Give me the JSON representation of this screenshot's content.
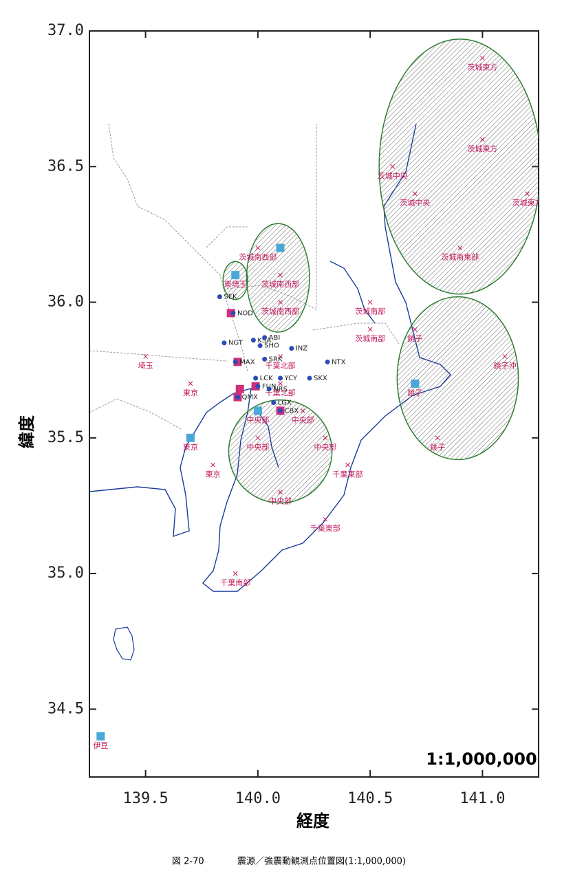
{
  "chart_data": {
    "type": "map",
    "xlabel": "経度",
    "ylabel": "緯度",
    "xlim": [
      139.25,
      141.25
    ],
    "ylim": [
      34.25,
      37.0
    ],
    "xticks": [
      139.5,
      {
        "value": 140,
        "label": "140.0"
      },
      140.5,
      {
        "value": 141,
        "label": "141.0"
      }
    ],
    "yticks": [
      {
        "value": 34.5,
        "label": "34.5"
      },
      {
        "value": 35,
        "label": "35.0"
      },
      {
        "value": 35.5,
        "label": "35.5"
      },
      {
        "value": 36,
        "label": "36.0"
      },
      {
        "value": 36.5,
        "label": "36.5"
      },
      {
        "value": 37,
        "label": "37.0"
      }
    ],
    "scale_label": "1:1,000,000",
    "epicenter_color": "#c2185b",
    "station_color": "#2b4bb8",
    "ellipse_color": "#2e7d32",
    "epicenters": [
      {
        "label": "茨城東方",
        "lon": 141.0,
        "lat": 36.9
      },
      {
        "label": "茨城東方",
        "lon": 141.0,
        "lat": 36.6
      },
      {
        "label": "茨城中央",
        "lon": 140.6,
        "lat": 36.5
      },
      {
        "label": "茨城中央",
        "lon": 140.7,
        "lat": 36.4
      },
      {
        "label": "茨城東方",
        "lon": 141.2,
        "lat": 36.4
      },
      {
        "label": "茨城南東部",
        "lon": 140.9,
        "lat": 36.2
      },
      {
        "label": "茨城南西部",
        "lon": 140.0,
        "lat": 36.2
      },
      {
        "label": "茨城南西部",
        "lon": 140.1,
        "lat": 36.1
      },
      {
        "label": "茨城南西部",
        "lon": 140.1,
        "lat": 36.0
      },
      {
        "label": "東埼玉",
        "lon": 139.9,
        "lat": 36.1
      },
      {
        "label": "茨城南部",
        "lon": 140.5,
        "lat": 36.0
      },
      {
        "label": "茨城南部",
        "lon": 140.5,
        "lat": 35.9
      },
      {
        "label": "銚子",
        "lon": 140.7,
        "lat": 35.9
      },
      {
        "label": "銚子沖",
        "lon": 141.1,
        "lat": 35.8
      },
      {
        "label": "銚子",
        "lon": 140.7,
        "lat": 35.7
      },
      {
        "label": "銚子",
        "lon": 140.8,
        "lat": 35.5
      },
      {
        "label": "埼玉",
        "lon": 139.5,
        "lat": 35.8
      },
      {
        "label": "東京",
        "lon": 139.7,
        "lat": 35.7
      },
      {
        "label": "東京",
        "lon": 139.7,
        "lat": 35.5
      },
      {
        "label": "東京",
        "lon": 139.8,
        "lat": 35.4
      },
      {
        "label": "千葉北部",
        "lon": 140.1,
        "lat": 35.8
      },
      {
        "label": "千葉北部",
        "lon": 140.1,
        "lat": 35.7
      },
      {
        "label": "中央部",
        "lon": 140.0,
        "lat": 35.6
      },
      {
        "label": "中央部",
        "lon": 140.2,
        "lat": 35.6
      },
      {
        "label": "中央部",
        "lon": 140.0,
        "lat": 35.5
      },
      {
        "label": "中央部",
        "lon": 140.3,
        "lat": 35.5
      },
      {
        "label": "中央部",
        "lon": 140.1,
        "lat": 35.3
      },
      {
        "label": "千葉東部",
        "lon": 140.4,
        "lat": 35.4
      },
      {
        "label": "千葉東部",
        "lon": 140.3,
        "lat": 35.2
      },
      {
        "label": "千葉南部",
        "lon": 139.9,
        "lat": 35.0
      },
      {
        "label": "伊豆",
        "lon": 139.3,
        "lat": 34.4
      }
    ],
    "stations": [
      {
        "code": "SEK",
        "lon": 139.83,
        "lat": 36.02
      },
      {
        "code": "NOD",
        "lon": 139.89,
        "lat": 35.96
      },
      {
        "code": "NGT",
        "lon": 139.85,
        "lat": 35.85
      },
      {
        "code": "KSA",
        "lon": 139.98,
        "lat": 35.86
      },
      {
        "code": "ABI",
        "lon": 140.03,
        "lat": 35.87
      },
      {
        "code": "SHO",
        "lon": 140.01,
        "lat": 35.84
      },
      {
        "code": "INZ",
        "lon": 140.15,
        "lat": 35.83
      },
      {
        "code": "NTX",
        "lon": 140.31,
        "lat": 35.78
      },
      {
        "code": "MAX",
        "lon": 139.9,
        "lat": 35.78
      },
      {
        "code": "SRK",
        "lon": 140.03,
        "lat": 35.79
      },
      {
        "code": "LCK",
        "lon": 139.99,
        "lat": 35.72
      },
      {
        "code": "YCY",
        "lon": 140.1,
        "lat": 35.72
      },
      {
        "code": "SKX",
        "lon": 140.23,
        "lat": 35.72
      },
      {
        "code": "FUN",
        "lon": 140.0,
        "lat": 35.69
      },
      {
        "code": "NRS",
        "lon": 140.05,
        "lat": 35.68
      },
      {
        "code": "LGX",
        "lon": 140.07,
        "lat": 35.63
      },
      {
        "code": "CBX",
        "lon": 140.1,
        "lat": 35.6
      },
      {
        "code": "QMX",
        "lon": 139.91,
        "lat": 35.65
      }
    ],
    "site_squares": {
      "color": "#4aa8d8",
      "lon": [
        140.1,
        139.9,
        140.0,
        139.7,
        140.7,
        139.3
      ],
      "lat": [
        36.2,
        36.1,
        35.6,
        35.5,
        35.7,
        34.4
      ]
    },
    "station_squares": {
      "color": "#d0307a",
      "lon": [
        139.88,
        139.91,
        139.92,
        139.91,
        140.1,
        139.99
      ],
      "lat": [
        35.96,
        35.78,
        35.68,
        35.65,
        35.6,
        35.69
      ]
    },
    "ellipses": [
      {
        "lon": 140.9,
        "lat": 36.5,
        "rx": 0.36,
        "ry": 0.47
      },
      {
        "lon": 140.89,
        "lat": 35.72,
        "rx": 0.27,
        "ry": 0.3
      },
      {
        "lon": 140.1,
        "lat": 35.45,
        "rx": 0.23,
        "ry": 0.19
      },
      {
        "lon": 140.09,
        "lat": 36.09,
        "rx": 0.14,
        "ry": 0.2
      },
      {
        "lon": 139.9,
        "lat": 36.08,
        "rx": 0.055,
        "ry": 0.07
      }
    ]
  },
  "caption": {
    "figure": "図 2-70",
    "text": "震源／強震動観測点位置図(1:1,000,000)"
  }
}
